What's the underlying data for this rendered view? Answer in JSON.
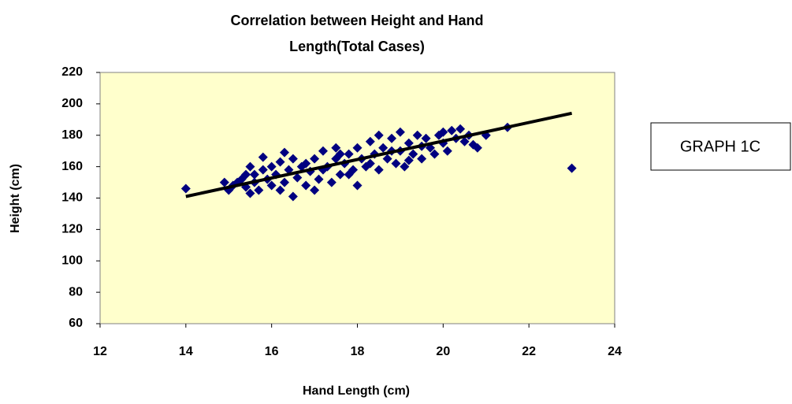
{
  "chart_data": {
    "type": "scatter",
    "title": [
      "Correlation between Height and Hand",
      "Length(Total Cases)"
    ],
    "x_label": "Hand Length (cm)",
    "y_label": "Height (cm)",
    "annotation": "GRAPH 1C",
    "xlim": [
      12,
      24
    ],
    "xticks": [
      12,
      14,
      16,
      18,
      20,
      22,
      24
    ],
    "ylim": [
      60,
      220
    ],
    "yticks": [
      60,
      80,
      100,
      120,
      140,
      160,
      180,
      200,
      220
    ],
    "grid": false,
    "plot_background": "#ffffcc",
    "series": [
      {
        "color": "#000080",
        "x": [
          14.0,
          14.9,
          15.0,
          15.1,
          15.2,
          15.3,
          15.4,
          15.4,
          15.5,
          15.5,
          15.6,
          15.6,
          15.7,
          15.8,
          15.8,
          15.9,
          16.0,
          16.0,
          16.1,
          16.2,
          16.2,
          16.3,
          16.3,
          16.4,
          16.5,
          16.5,
          16.6,
          16.7,
          16.8,
          16.8,
          16.9,
          17.0,
          17.0,
          17.1,
          17.2,
          17.2,
          17.3,
          17.4,
          17.5,
          17.5,
          17.6,
          17.6,
          17.7,
          17.8,
          17.8,
          17.9,
          18.0,
          18.0,
          18.1,
          18.2,
          18.3,
          18.3,
          18.4,
          18.5,
          18.5,
          18.6,
          18.7,
          18.8,
          18.8,
          18.9,
          19.0,
          19.0,
          19.1,
          19.2,
          19.2,
          19.3,
          19.4,
          19.5,
          19.5,
          19.6,
          19.7,
          19.8,
          19.9,
          20.0,
          20.0,
          20.1,
          20.2,
          20.3,
          20.4,
          20.5,
          20.6,
          20.7,
          20.8,
          21.0,
          21.5,
          23.0
        ],
        "y": [
          146,
          150,
          145,
          148,
          150,
          152,
          147,
          155,
          143,
          160,
          150,
          155,
          145,
          158,
          166,
          152,
          148,
          160,
          155,
          145,
          163,
          169,
          150,
          158,
          141,
          165,
          153,
          160,
          148,
          162,
          157,
          145,
          165,
          152,
          170,
          158,
          160,
          150,
          165,
          172,
          155,
          168,
          162,
          168,
          155,
          158,
          148,
          172,
          165,
          160,
          176,
          162,
          168,
          180,
          158,
          172,
          165,
          178,
          170,
          162,
          182,
          170,
          160,
          175,
          164,
          168,
          180,
          165,
          173,
          178,
          172,
          168,
          180,
          175,
          182,
          170,
          183,
          178,
          184,
          176,
          180,
          174,
          172,
          180,
          185,
          159
        ]
      }
    ],
    "trendline": {
      "color": "#000000",
      "x": [
        14,
        23
      ],
      "y": [
        141,
        194
      ]
    }
  }
}
